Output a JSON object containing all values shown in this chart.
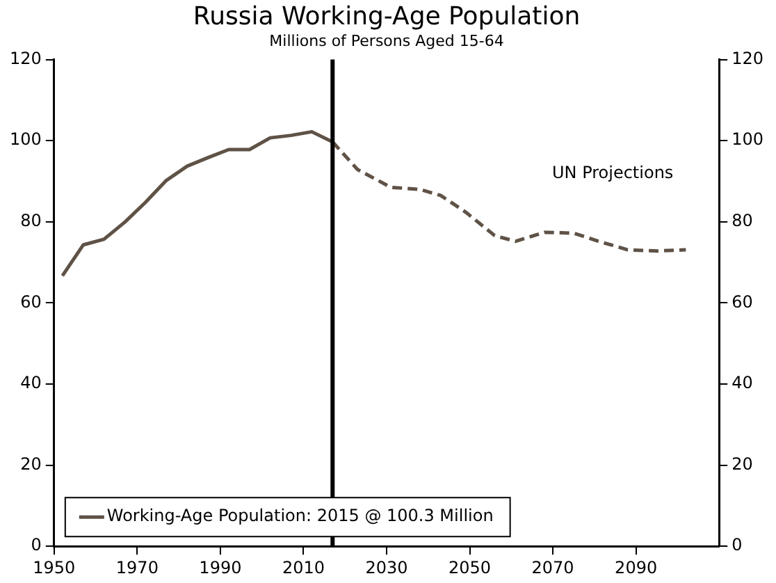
{
  "chart_data": {
    "type": "line",
    "title": "Russia Working-Age Population",
    "subtitle": "Millions of Persons Aged 15-64",
    "series": [
      {
        "name": "Working-Age Population: 2015 @ 100.3 Million",
        "color": "#5f5246",
        "x": [
          1952,
          1957,
          1962,
          1967,
          1972,
          1977,
          1982,
          1987,
          1992,
          1997,
          2002,
          2007,
          2012,
          2017
        ],
        "values": [
          66.7,
          74.3,
          75.7,
          79.9,
          84.8,
          90.2,
          93.7,
          95.8,
          97.8,
          97.8,
          100.7,
          101.3,
          102.2,
          99.7
        ]
      },
      {
        "color": "#5f5246",
        "line_style": "dashed",
        "x": [
          2017,
          2023,
          2031,
          2038,
          2043,
          2049,
          2056,
          2061,
          2068,
          2075,
          2081,
          2088,
          2095,
          2102
        ],
        "values": [
          99.7,
          92.9,
          88.5,
          88.0,
          86.5,
          82.4,
          76.6,
          75.2,
          77.4,
          77.2,
          75.2,
          73.1,
          72.8,
          73.1
        ]
      }
    ],
    "xlim": [
      1950,
      2110
    ],
    "xticks": [
      1950,
      1970,
      1990,
      2010,
      2030,
      2050,
      2070,
      2090
    ],
    "ylim": [
      0,
      120
    ],
    "yticks": [
      0,
      20,
      40,
      60,
      80,
      100,
      120
    ],
    "y2lim": [
      0,
      120
    ],
    "y2ticks": [
      0,
      20,
      40,
      60,
      80,
      100,
      120
    ],
    "ref_lines": [
      {
        "axis": "x",
        "value": 2017,
        "color": "#000000"
      }
    ],
    "annotations": [
      "UN Projections"
    ],
    "grid": false,
    "legend": "bottom left",
    "marker": "none",
    "line_style": "solid"
  }
}
